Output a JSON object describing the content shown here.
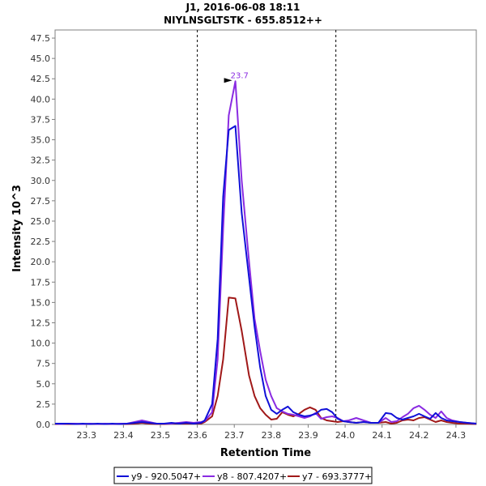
{
  "chart_data": {
    "type": "line",
    "title": "J1, 2016-06-08 18:11",
    "subtitle": "NIYLNSGLTSTK - 655.8512++",
    "xlabel": "Retention Time",
    "ylabel": "Intensity 10^3",
    "xlim": [
      23.215,
      24.355
    ],
    "ylim": [
      0,
      48.5
    ],
    "x_ticks": [
      "23.3",
      "23.4",
      "23.5",
      "23.6",
      "23.7",
      "23.8",
      "23.9",
      "24.0",
      "24.1",
      "24.2",
      "24.3"
    ],
    "y_ticks": [
      "0.0",
      "2.5",
      "5.0",
      "7.5",
      "10.0",
      "12.5",
      "15.0",
      "17.5",
      "20.0",
      "22.5",
      "25.0",
      "27.5",
      "30.0",
      "32.5",
      "35.0",
      "37.5",
      "40.0",
      "42.5",
      "45.0",
      "47.5"
    ],
    "boundaries": [
      23.6,
      23.975
    ],
    "annotation": {
      "label": "23.7",
      "x": 23.703,
      "y": 42.2
    },
    "series": [
      {
        "name": "y9 - 920.5047+",
        "color": "#1010d8",
        "x": [
          23.215,
          23.23,
          23.25,
          23.27,
          23.29,
          23.31,
          23.33,
          23.35,
          23.37,
          23.39,
          23.41,
          23.43,
          23.45,
          23.47,
          23.49,
          23.51,
          23.53,
          23.55,
          23.57,
          23.59,
          23.61,
          23.62,
          23.64,
          23.655,
          23.67,
          23.685,
          23.703,
          23.72,
          23.74,
          23.755,
          23.77,
          23.785,
          23.8,
          23.815,
          23.83,
          23.845,
          23.86,
          23.875,
          23.89,
          23.905,
          23.92,
          23.935,
          23.95,
          23.965,
          23.98,
          23.995,
          24.01,
          24.03,
          24.05,
          24.07,
          24.09,
          24.11,
          24.125,
          24.14,
          24.155,
          24.17,
          24.185,
          24.2,
          24.215,
          24.23,
          24.245,
          24.26,
          24.275,
          24.29,
          24.31,
          24.33,
          24.355
        ],
        "y": [
          0.1,
          0.1,
          0.1,
          0.05,
          0.1,
          0.05,
          0.1,
          0.05,
          0.1,
          0.05,
          0.1,
          0.2,
          0.3,
          0.2,
          0.1,
          0.1,
          0.2,
          0.1,
          0.2,
          0.1,
          0.2,
          0.5,
          2.5,
          10.5,
          28.0,
          36.2,
          36.7,
          26.0,
          18.0,
          12.0,
          7.0,
          3.5,
          1.8,
          1.3,
          1.8,
          2.2,
          1.5,
          1.2,
          1.0,
          1.1,
          1.3,
          1.8,
          1.9,
          1.5,
          0.7,
          0.4,
          0.3,
          0.2,
          0.3,
          0.2,
          0.2,
          1.4,
          1.3,
          0.8,
          0.6,
          0.8,
          1.0,
          1.3,
          1.0,
          0.7,
          1.4,
          0.8,
          0.5,
          0.4,
          0.3,
          0.2,
          0.1
        ]
      },
      {
        "name": "y8 - 807.4207+",
        "color": "#8a2be2",
        "x": [
          23.215,
          23.23,
          23.25,
          23.27,
          23.29,
          23.31,
          23.33,
          23.35,
          23.37,
          23.39,
          23.41,
          23.43,
          23.45,
          23.47,
          23.49,
          23.51,
          23.53,
          23.55,
          23.57,
          23.59,
          23.61,
          23.62,
          23.64,
          23.655,
          23.67,
          23.685,
          23.703,
          23.72,
          23.74,
          23.755,
          23.77,
          23.785,
          23.8,
          23.815,
          23.83,
          23.845,
          23.86,
          23.875,
          23.89,
          23.905,
          23.92,
          23.935,
          23.95,
          23.965,
          23.98,
          23.995,
          24.01,
          24.03,
          24.05,
          24.07,
          24.09,
          24.11,
          24.125,
          24.14,
          24.155,
          24.17,
          24.185,
          24.2,
          24.215,
          24.23,
          24.245,
          24.26,
          24.275,
          24.29,
          24.31,
          24.33,
          24.355
        ],
        "y": [
          0.1,
          0.05,
          0.1,
          0.1,
          0.05,
          0.1,
          0.05,
          0.1,
          0.05,
          0.1,
          0.1,
          0.3,
          0.5,
          0.3,
          0.1,
          0.1,
          0.1,
          0.2,
          0.3,
          0.2,
          0.3,
          0.4,
          1.5,
          8.0,
          24.0,
          38.0,
          42.2,
          30.0,
          20.0,
          13.0,
          9.0,
          5.5,
          3.5,
          2.0,
          1.6,
          1.3,
          1.2,
          1.0,
          0.8,
          1.0,
          1.4,
          0.7,
          0.9,
          1.0,
          0.8,
          0.4,
          0.5,
          0.8,
          0.5,
          0.2,
          0.2,
          0.8,
          0.3,
          0.4,
          0.9,
          1.3,
          2.0,
          2.3,
          1.8,
          1.2,
          0.8,
          1.6,
          0.8,
          0.5,
          0.3,
          0.2,
          0.1
        ]
      },
      {
        "name": "y7 - 693.3777+",
        "color": "#a01818",
        "x": [
          23.215,
          23.23,
          23.25,
          23.27,
          23.29,
          23.31,
          23.33,
          23.35,
          23.37,
          23.39,
          23.41,
          23.43,
          23.45,
          23.47,
          23.49,
          23.51,
          23.53,
          23.55,
          23.57,
          23.59,
          23.61,
          23.62,
          23.64,
          23.655,
          23.67,
          23.685,
          23.703,
          23.72,
          23.74,
          23.755,
          23.77,
          23.785,
          23.8,
          23.815,
          23.83,
          23.845,
          23.86,
          23.875,
          23.89,
          23.905,
          23.92,
          23.935,
          23.95,
          23.965,
          23.98,
          23.995,
          24.01,
          24.03,
          24.05,
          24.07,
          24.09,
          24.11,
          24.125,
          24.14,
          24.155,
          24.17,
          24.185,
          24.2,
          24.215,
          24.23,
          24.245,
          24.26,
          24.275,
          24.29,
          24.31,
          24.33,
          24.355
        ],
        "y": [
          0.05,
          0.05,
          0.05,
          0.05,
          0.05,
          0.05,
          0.05,
          0.05,
          0.05,
          0.05,
          0.05,
          0.1,
          0.2,
          0.1,
          0.05,
          0.05,
          0.1,
          0.1,
          0.1,
          0.1,
          0.1,
          0.3,
          1.0,
          3.5,
          8.0,
          15.6,
          15.5,
          11.5,
          6.0,
          3.5,
          2.0,
          1.2,
          0.6,
          0.7,
          1.5,
          1.2,
          1.0,
          1.3,
          1.8,
          2.1,
          1.8,
          0.8,
          0.5,
          0.4,
          0.3,
          0.4,
          0.3,
          0.2,
          0.3,
          0.2,
          0.2,
          0.3,
          0.1,
          0.2,
          0.5,
          0.6,
          0.5,
          0.8,
          0.9,
          0.6,
          0.3,
          0.5,
          0.3,
          0.2,
          0.1,
          0.1,
          0.05
        ]
      }
    ]
  }
}
